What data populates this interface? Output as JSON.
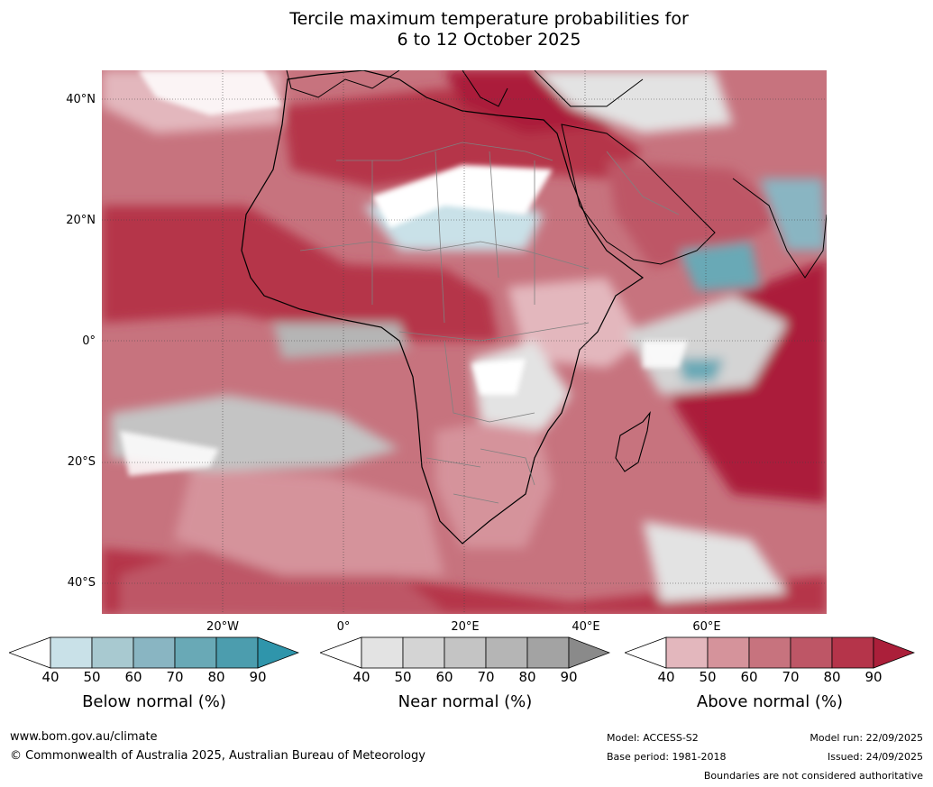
{
  "title_line1": "Tercile maximum temperature probabilities for",
  "title_line2": "6 to 12 October 2025",
  "lat_labels": [
    "40°N",
    "20°N",
    "0°",
    "20°S",
    "40°S"
  ],
  "lon_labels": [
    "20°W",
    "0°",
    "20°E",
    "40°E",
    "60°E"
  ],
  "colorbars": [
    {
      "label": "Below normal (%)",
      "ticks": [
        "40",
        "50",
        "60",
        "70",
        "80",
        "90"
      ],
      "colors": [
        "#c9e1e8",
        "#a8c9d0",
        "#89b5c2",
        "#69a9b6",
        "#4c9dae",
        "#2f95ab"
      ]
    },
    {
      "label": "Near normal (%)",
      "ticks": [
        "40",
        "50",
        "60",
        "70",
        "80",
        "90"
      ],
      "colors": [
        "#e3e3e3",
        "#d4d4d4",
        "#c4c4c4",
        "#b5b5b5",
        "#a3a3a3",
        "#8a8a8a"
      ]
    },
    {
      "label": "Above normal (%)",
      "ticks": [
        "40",
        "50",
        "60",
        "70",
        "80",
        "90"
      ],
      "colors": [
        "#e3b7bd",
        "#d5939b",
        "#c7737e",
        "#be5666",
        "#b5344a",
        "#ab1f3a"
      ]
    }
  ],
  "footer": {
    "url": "www.bom.gov.au/climate",
    "copyright": "© Commonwealth of Australia 2025, Australian Bureau of Meteorology",
    "model": "Model: ACCESS-S2",
    "base_period": "Base period: 1981-2018",
    "model_run": "Model run: 22/09/2025",
    "issued": "Issued: 24/09/2025",
    "disclaimer": "Boundaries are not considered authoritative"
  }
}
